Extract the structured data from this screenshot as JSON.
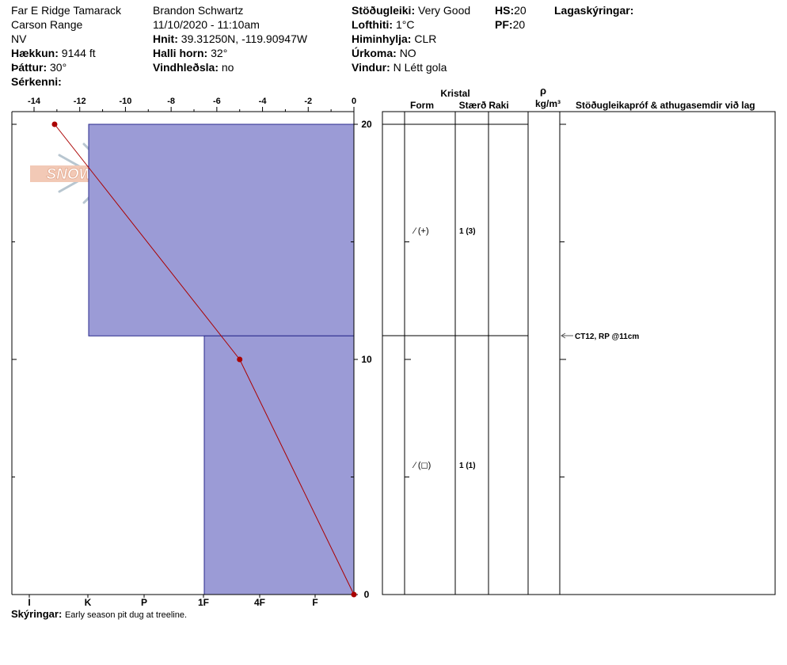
{
  "header": {
    "location": "Far E Ridge Tamarack",
    "range": "Carson Range",
    "state": "NV",
    "elevation_label": "Hækkun:",
    "elevation": "9144 ft",
    "aspect_label": "Þáttur:",
    "aspect": "30°",
    "features_label": "Sérkenni:",
    "observer": "Brandon Schwartz",
    "datetime": "11/10/2020 - 11:10am",
    "coords_label": "Hnit:",
    "coords": "39.31250N, -119.90947W",
    "slope_label": "Halli horn:",
    "slope": "32°",
    "wind_loading_label": "Vindhleðsla:",
    "wind_loading": "no",
    "stability_label": "Stöðugleiki:",
    "stability": "Very Good",
    "air_temp_label": "Lofthiti:",
    "air_temp": "1°C",
    "sky_label": "Himinhylja:",
    "sky": "CLR",
    "precip_label": "Úrkoma:",
    "precip": "NO",
    "wind_label": "Vindur:",
    "wind": "N Létt gola",
    "hs_label": "HS:",
    "hs": "20",
    "pf_label": "PF:",
    "pf": "20",
    "layer_notes_label": "Lagaskýringar:"
  },
  "logo": {
    "text": "SNOWPILOT"
  },
  "chart_data": {
    "type": "area",
    "temperature_profile": {
      "x_temp_c": [
        -13.1,
        -5.0,
        0.0
      ],
      "y_depth_cm": [
        20,
        10,
        0
      ],
      "color": "#aa0000"
    },
    "hardness_profile": {
      "layers": [
        {
          "top_cm": 20,
          "bottom_cm": 11,
          "hardness_value": 1
        },
        {
          "top_cm": 11,
          "bottom_cm": 0,
          "hardness_value": 3
        }
      ],
      "color": "#9b9bd6"
    },
    "x_temp_ticks": [
      "-14",
      "-12",
      "-10",
      "-8",
      "-6",
      "-4",
      "-2",
      "0"
    ],
    "x_temp_range": [
      -15,
      0
    ],
    "hardness_ticks": [
      "I",
      "K",
      "P",
      "1F",
      "4F",
      "F"
    ],
    "y_ticks": [
      "20",
      "10",
      "0"
    ],
    "y_range": [
      0,
      20.5
    ]
  },
  "table": {
    "crystal_label": "Kristal",
    "form_label": "Form",
    "size_label": "Stærð",
    "moisture_label": "Raki",
    "density_symbol": "ρ",
    "density_unit": "kg/m³",
    "stability_tests_label": "Stöðugleikapróf & athugasemdir við lag",
    "layers": [
      {
        "form": "⁄ (+)",
        "size": "1 (3)"
      },
      {
        "form": "⁄ (◻)",
        "size": "1 (1)"
      }
    ],
    "test_note": "CT12, RP @11cm"
  },
  "footer": {
    "comments_label": "Skýringar:",
    "comments": "Early season pit dug at treeline."
  }
}
